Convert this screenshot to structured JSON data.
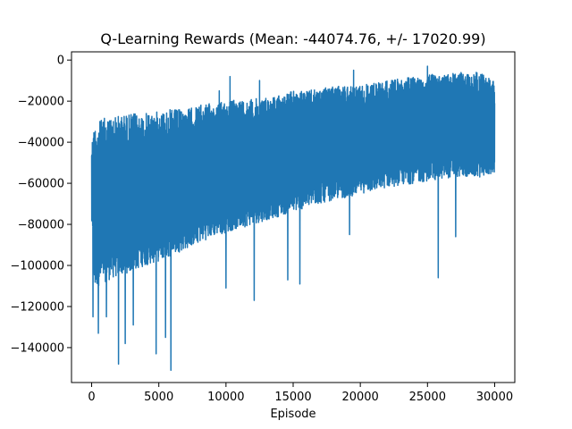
{
  "chart_data": {
    "type": "line",
    "title": "Q-Learning Rewards (Mean: -44074.76, +/- 17020.99)",
    "xlabel": "Episode",
    "ylabel": "",
    "xlim": [
      -1500,
      31500
    ],
    "ylim": [
      -157000,
      4000
    ],
    "xticks": [
      0,
      5000,
      10000,
      15000,
      20000,
      25000,
      30000
    ],
    "xtick_labels": [
      "0",
      "5000",
      "10000",
      "15000",
      "20000",
      "25000",
      "30000"
    ],
    "yticks": [
      0,
      -20000,
      -40000,
      -60000,
      -80000,
      -100000,
      -120000,
      -140000
    ],
    "ytick_labels": [
      "0",
      "−20000",
      "−40000",
      "−60000",
      "−80000",
      "−100000",
      "−120000",
      "−140000"
    ],
    "grid": false,
    "legend": "none",
    "series": [
      {
        "color": "#1f77b4",
        "envelope": {
          "x": [
            0,
            200,
            500,
            1000,
            2000,
            3000,
            4000,
            5000,
            6000,
            7000,
            8000,
            9000,
            10000,
            11000,
            12000,
            13000,
            14000,
            15000,
            16000,
            17000,
            18000,
            19000,
            20000,
            21000,
            22000,
            23000,
            24000,
            25000,
            26000,
            27000,
            28000,
            29000,
            30000
          ],
          "upper": [
            -40000,
            -32000,
            -30000,
            -28000,
            -27000,
            -26000,
            -26000,
            -25000,
            -24000,
            -24000,
            -22000,
            -21000,
            -20000,
            -19000,
            -19000,
            -18000,
            -17000,
            -15000,
            -15000,
            -14000,
            -13000,
            -12000,
            -12000,
            -11000,
            -10000,
            -9000,
            -8000,
            -7000,
            -7000,
            -6000,
            -6000,
            -6000,
            -10000
          ],
          "lower": [
            -80000,
            -112000,
            -110000,
            -108000,
            -105000,
            -103000,
            -100000,
            -98000,
            -95000,
            -92000,
            -89000,
            -86000,
            -84000,
            -82000,
            -80000,
            -78000,
            -76000,
            -74000,
            -72000,
            -70000,
            -68000,
            -67000,
            -65000,
            -64000,
            -62000,
            -61000,
            -60000,
            -59000,
            -58000,
            -57000,
            -57000,
            -57000,
            -55000
          ]
        },
        "spikes_up": [
          [
            500,
            -22000
          ],
          [
            9500,
            -15000
          ],
          [
            10300,
            -8000
          ],
          [
            12500,
            -10000
          ],
          [
            19500,
            -5000
          ],
          [
            25000,
            -3000
          ]
        ],
        "spikes_down": [
          [
            100,
            -125000
          ],
          [
            500,
            -133000
          ],
          [
            1100,
            -125000
          ],
          [
            2000,
            -148000
          ],
          [
            2500,
            -138000
          ],
          [
            3100,
            -129000
          ],
          [
            4800,
            -143000
          ],
          [
            5500,
            -135000
          ],
          [
            5900,
            -151000
          ],
          [
            10000,
            -111000
          ],
          [
            12100,
            -117000
          ],
          [
            14600,
            -107000
          ],
          [
            15500,
            -109000
          ],
          [
            19200,
            -85000
          ],
          [
            25800,
            -106000
          ],
          [
            27100,
            -86000
          ]
        ]
      }
    ]
  }
}
